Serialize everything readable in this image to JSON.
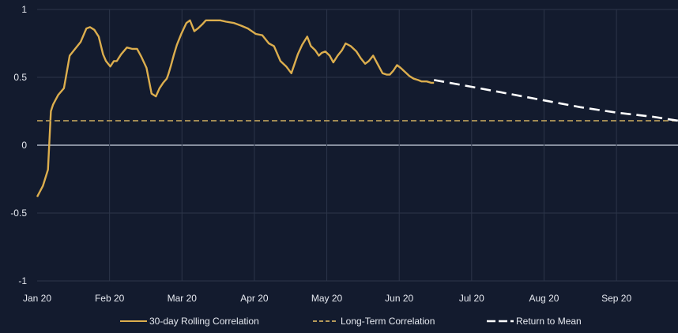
{
  "chart_data": {
    "type": "line",
    "title": "",
    "xlabel": "",
    "ylabel": "",
    "ylim": [
      -1,
      1
    ],
    "yticks": [
      {
        "value": 1,
        "label": "1"
      },
      {
        "value": 0.5,
        "label": "0.5"
      },
      {
        "value": 0,
        "label": "0"
      },
      {
        "value": -0.5,
        "label": "-0.5"
      },
      {
        "value": -1,
        "label": "-1"
      }
    ],
    "xticks": [
      "Jan 20",
      "Feb 20",
      "Mar 20",
      "Apr 20",
      "May 20",
      "Jun 20",
      "Jul 20",
      "Aug 20",
      "Sep 20"
    ],
    "xlim": [
      0,
      8.85
    ],
    "grid": true,
    "legend": "bottom",
    "colors": {
      "background": "#131b2e",
      "grid": "#2c3549",
      "zero_line": "#aeb6c4",
      "rolling": "#dcae4e",
      "long_term": "#b59a5a",
      "return_to_mean": "#ffffff",
      "text": "#e6e9f0"
    },
    "series": [
      {
        "name": "30-day Rolling Correlation",
        "style": "solid",
        "x": [
          0.0,
          0.08,
          0.15,
          0.19,
          0.22,
          0.29,
          0.37,
          0.45,
          0.51,
          0.6,
          0.68,
          0.73,
          0.79,
          0.85,
          0.91,
          0.95,
          1.01,
          1.06,
          1.1,
          1.16,
          1.24,
          1.31,
          1.38,
          1.44,
          1.51,
          1.58,
          1.64,
          1.69,
          1.74,
          1.79,
          1.81,
          1.85,
          1.89,
          1.93,
          1.99,
          2.06,
          2.11,
          2.17,
          2.22,
          2.28,
          2.33,
          2.38,
          2.46,
          2.53,
          2.61,
          2.72,
          2.82,
          2.91,
          3.02,
          3.11,
          3.2,
          3.27,
          3.36,
          3.44,
          3.51,
          3.6,
          3.66,
          3.73,
          3.78,
          3.84,
          3.89,
          3.93,
          3.98,
          4.04,
          4.09,
          4.15,
          4.21,
          4.26,
          4.33,
          4.41,
          4.47,
          4.53,
          4.58,
          4.64,
          4.71,
          4.77,
          4.83,
          4.87,
          4.92,
          4.97,
          5.02,
          5.08,
          5.14,
          5.2,
          5.26,
          5.31,
          5.38,
          5.44,
          5.48
        ],
        "y": [
          -0.38,
          -0.3,
          -0.18,
          0.25,
          0.3,
          0.37,
          0.42,
          0.66,
          0.7,
          0.76,
          0.86,
          0.87,
          0.85,
          0.8,
          0.67,
          0.62,
          0.58,
          0.62,
          0.62,
          0.67,
          0.72,
          0.71,
          0.71,
          0.65,
          0.57,
          0.38,
          0.36,
          0.42,
          0.46,
          0.49,
          0.52,
          0.59,
          0.67,
          0.74,
          0.82,
          0.9,
          0.92,
          0.84,
          0.86,
          0.89,
          0.92,
          0.92,
          0.92,
          0.92,
          0.91,
          0.9,
          0.88,
          0.86,
          0.82,
          0.81,
          0.75,
          0.73,
          0.62,
          0.58,
          0.53,
          0.67,
          0.74,
          0.8,
          0.73,
          0.7,
          0.66,
          0.68,
          0.69,
          0.66,
          0.61,
          0.66,
          0.7,
          0.75,
          0.73,
          0.69,
          0.64,
          0.6,
          0.62,
          0.66,
          0.59,
          0.53,
          0.52,
          0.52,
          0.55,
          0.59,
          0.57,
          0.54,
          0.51,
          0.49,
          0.48,
          0.47,
          0.47,
          0.46,
          0.46
        ]
      },
      {
        "name": "Long-Term Correlation",
        "style": "dashed",
        "x": [
          0.0,
          8.85
        ],
        "y": [
          0.18,
          0.18
        ]
      },
      {
        "name": "Return to Mean",
        "style": "dashed",
        "x": [
          5.48,
          6.0,
          6.5,
          7.0,
          7.5,
          8.0,
          8.5,
          8.85
        ],
        "y": [
          0.48,
          0.43,
          0.38,
          0.33,
          0.28,
          0.24,
          0.21,
          0.18
        ]
      }
    ]
  }
}
